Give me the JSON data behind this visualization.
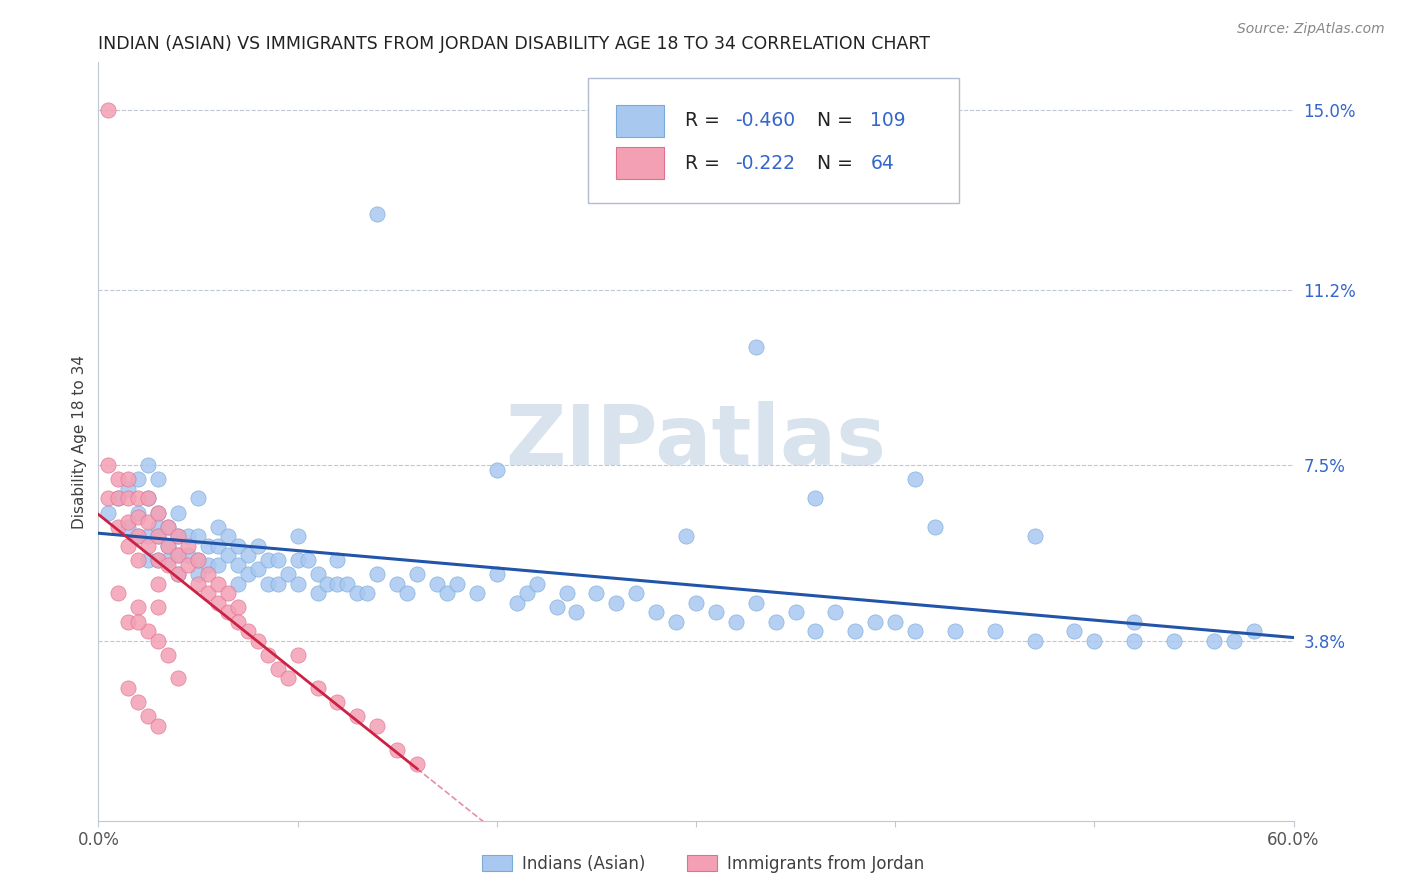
{
  "title": "INDIAN (ASIAN) VS IMMIGRANTS FROM JORDAN DISABILITY AGE 18 TO 34 CORRELATION CHART",
  "source_text": "Source: ZipAtlas.com",
  "ylabel": "Disability Age 18 to 34",
  "xlim": [
    0.0,
    0.6
  ],
  "ylim": [
    0.0,
    0.16
  ],
  "xticks": [
    0.0,
    0.1,
    0.2,
    0.3,
    0.4,
    0.5,
    0.6
  ],
  "xticklabels": [
    "0.0%",
    "",
    "",
    "",
    "",
    "",
    "60.0%"
  ],
  "ytick_positions": [
    0.038,
    0.075,
    0.112,
    0.15
  ],
  "ytick_labels": [
    "3.8%",
    "7.5%",
    "11.2%",
    "15.0%"
  ],
  "blue_R": "-0.460",
  "blue_N": "109",
  "pink_R": "-0.222",
  "pink_N": "64",
  "legend_label_blue": "Indians (Asian)",
  "legend_label_pink": "Immigrants from Jordan",
  "blue_color": "#a8c8f0",
  "blue_edge_color": "#7aaad8",
  "pink_color": "#f4a0b4",
  "pink_edge_color": "#e07090",
  "trendline_blue_color": "#2255aa",
  "trendline_pink_color": "#cc2244",
  "watermark_color": "#c8d8e8",
  "legend_R_color": "#3366cc",
  "legend_N_color": "#3366cc",
  "blue_scatter_x": [
    0.005,
    0.01,
    0.015,
    0.015,
    0.02,
    0.02,
    0.02,
    0.025,
    0.025,
    0.025,
    0.025,
    0.03,
    0.03,
    0.03,
    0.03,
    0.03,
    0.035,
    0.035,
    0.035,
    0.04,
    0.04,
    0.04,
    0.04,
    0.045,
    0.045,
    0.05,
    0.05,
    0.05,
    0.05,
    0.055,
    0.055,
    0.06,
    0.06,
    0.06,
    0.065,
    0.065,
    0.07,
    0.07,
    0.07,
    0.075,
    0.075,
    0.08,
    0.08,
    0.085,
    0.085,
    0.09,
    0.09,
    0.095,
    0.1,
    0.1,
    0.1,
    0.105,
    0.11,
    0.11,
    0.115,
    0.12,
    0.12,
    0.125,
    0.13,
    0.135,
    0.14,
    0.15,
    0.155,
    0.16,
    0.17,
    0.175,
    0.18,
    0.19,
    0.2,
    0.21,
    0.215,
    0.22,
    0.23,
    0.235,
    0.24,
    0.25,
    0.26,
    0.27,
    0.28,
    0.29,
    0.3,
    0.31,
    0.32,
    0.33,
    0.34,
    0.35,
    0.36,
    0.37,
    0.38,
    0.39,
    0.4,
    0.41,
    0.43,
    0.45,
    0.47,
    0.49,
    0.5,
    0.52,
    0.54,
    0.56,
    0.58,
    0.36,
    0.42,
    0.47,
    0.52,
    0.57,
    0.14,
    0.2,
    0.33,
    0.295,
    0.41
  ],
  "blue_scatter_y": [
    0.065,
    0.068,
    0.062,
    0.07,
    0.065,
    0.06,
    0.072,
    0.068,
    0.06,
    0.055,
    0.075,
    0.065,
    0.062,
    0.06,
    0.055,
    0.072,
    0.062,
    0.058,
    0.055,
    0.065,
    0.06,
    0.056,
    0.052,
    0.06,
    0.056,
    0.06,
    0.055,
    0.052,
    0.068,
    0.058,
    0.054,
    0.062,
    0.058,
    0.054,
    0.06,
    0.056,
    0.058,
    0.054,
    0.05,
    0.056,
    0.052,
    0.058,
    0.053,
    0.055,
    0.05,
    0.055,
    0.05,
    0.052,
    0.06,
    0.055,
    0.05,
    0.055,
    0.052,
    0.048,
    0.05,
    0.055,
    0.05,
    0.05,
    0.048,
    0.048,
    0.052,
    0.05,
    0.048,
    0.052,
    0.05,
    0.048,
    0.05,
    0.048,
    0.052,
    0.046,
    0.048,
    0.05,
    0.045,
    0.048,
    0.044,
    0.048,
    0.046,
    0.048,
    0.044,
    0.042,
    0.046,
    0.044,
    0.042,
    0.046,
    0.042,
    0.044,
    0.04,
    0.044,
    0.04,
    0.042,
    0.042,
    0.04,
    0.04,
    0.04,
    0.038,
    0.04,
    0.038,
    0.038,
    0.038,
    0.038,
    0.04,
    0.068,
    0.062,
    0.06,
    0.042,
    0.038,
    0.128,
    0.074,
    0.1,
    0.06,
    0.072
  ],
  "pink_scatter_x": [
    0.005,
    0.005,
    0.005,
    0.01,
    0.01,
    0.01,
    0.015,
    0.015,
    0.015,
    0.015,
    0.02,
    0.02,
    0.02,
    0.02,
    0.025,
    0.025,
    0.025,
    0.03,
    0.03,
    0.03,
    0.03,
    0.035,
    0.035,
    0.035,
    0.04,
    0.04,
    0.04,
    0.045,
    0.045,
    0.05,
    0.05,
    0.055,
    0.055,
    0.06,
    0.06,
    0.065,
    0.065,
    0.07,
    0.07,
    0.075,
    0.08,
    0.085,
    0.09,
    0.095,
    0.1,
    0.11,
    0.12,
    0.13,
    0.14,
    0.15,
    0.16,
    0.015,
    0.02,
    0.025,
    0.03,
    0.035,
    0.04,
    0.01,
    0.02,
    0.03,
    0.015,
    0.02,
    0.025,
    0.03
  ],
  "pink_scatter_y": [
    0.15,
    0.075,
    0.068,
    0.072,
    0.068,
    0.062,
    0.072,
    0.068,
    0.063,
    0.058,
    0.068,
    0.064,
    0.06,
    0.055,
    0.068,
    0.063,
    0.058,
    0.065,
    0.06,
    0.055,
    0.05,
    0.062,
    0.058,
    0.054,
    0.06,
    0.056,
    0.052,
    0.058,
    0.054,
    0.055,
    0.05,
    0.052,
    0.048,
    0.05,
    0.046,
    0.048,
    0.044,
    0.045,
    0.042,
    0.04,
    0.038,
    0.035,
    0.032,
    0.03,
    0.035,
    0.028,
    0.025,
    0.022,
    0.02,
    0.015,
    0.012,
    0.042,
    0.045,
    0.04,
    0.038,
    0.035,
    0.03,
    0.048,
    0.042,
    0.045,
    0.028,
    0.025,
    0.022,
    0.02
  ],
  "pink_trendline_xlim": [
    0.0,
    0.16
  ],
  "pink_trendline_dashed_xlim": [
    0.16,
    0.6
  ]
}
